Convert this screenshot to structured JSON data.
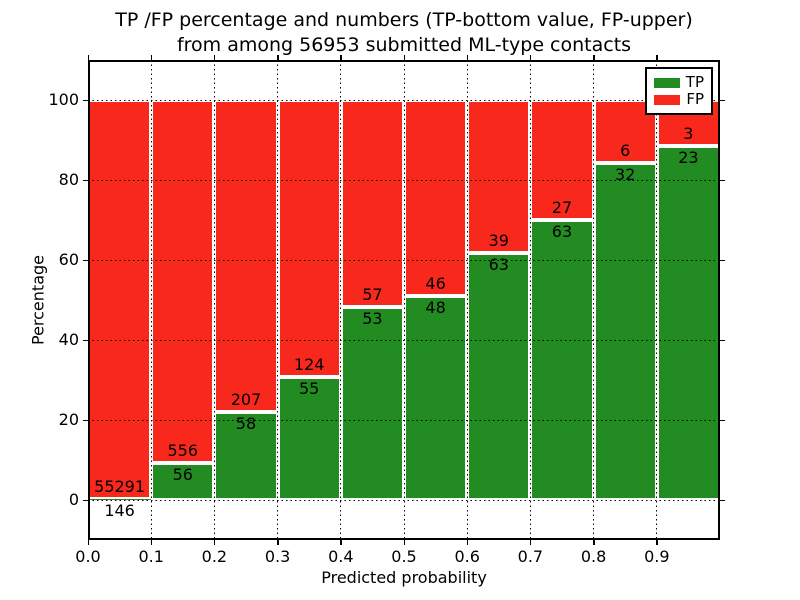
{
  "figure": {
    "title_line1": "TP /FP percentage and numbers (TP-bottom value, FP-upper)",
    "title_line2": "from among 56953 submitted ML-type contacts"
  },
  "axes": {
    "xlabel": "Predicted probability",
    "ylabel": "Percentage",
    "x_tick_labels": [
      "0.0",
      "0.1",
      "0.2",
      "0.3",
      "0.4",
      "0.5",
      "0.6",
      "0.7",
      "0.8",
      "0.9"
    ],
    "y_tick_labels": [
      "0",
      "20",
      "40",
      "60",
      "80",
      "100"
    ],
    "y_tick_values": [
      0,
      20,
      40,
      60,
      80,
      100
    ],
    "xlim": [
      0.0,
      1.0
    ],
    "ylim": [
      -10,
      110
    ],
    "grid_style": "dotted"
  },
  "legend": {
    "items": [
      {
        "label": "TP",
        "color": "#228B22"
      },
      {
        "label": "FP",
        "color": "#F8281C"
      }
    ]
  },
  "colors": {
    "tp_green": "#228B22",
    "fp_red": "#F8281C",
    "bar_edge": "#ffffff",
    "text": "#000000"
  },
  "chart_data": {
    "type": "bar",
    "stacked": true,
    "normalized_to_percent": true,
    "title": "TP /FP percentage and numbers (TP-bottom value, FP-upper) from among 56953 submitted ML-type contacts",
    "xlabel": "Predicted probability",
    "ylabel": "Percentage",
    "total_contacts": 56953,
    "bin_edges": [
      0.0,
      0.1,
      0.2,
      0.3,
      0.4,
      0.5,
      0.6,
      0.7,
      0.8,
      0.9,
      1.0
    ],
    "categories": [
      "0.0-0.1",
      "0.1-0.2",
      "0.2-0.3",
      "0.3-0.4",
      "0.4-0.5",
      "0.5-0.6",
      "0.6-0.7",
      "0.7-0.8",
      "0.8-0.9",
      "0.9-1.0"
    ],
    "series": [
      {
        "name": "TP",
        "color": "#228B22",
        "counts": [
          146,
          56,
          58,
          55,
          53,
          48,
          63,
          63,
          32,
          23
        ]
      },
      {
        "name": "FP",
        "color": "#F8281C",
        "counts": [
          55291,
          556,
          207,
          124,
          57,
          46,
          39,
          27,
          6,
          3
        ]
      }
    ],
    "tp_percent": [
      0.26,
      9.15,
      21.89,
      30.73,
      48.18,
      51.06,
      61.76,
      70.0,
      84.21,
      88.46
    ],
    "ylim": [
      -10,
      110
    ],
    "legend_position": "upper right",
    "grid": true
  }
}
